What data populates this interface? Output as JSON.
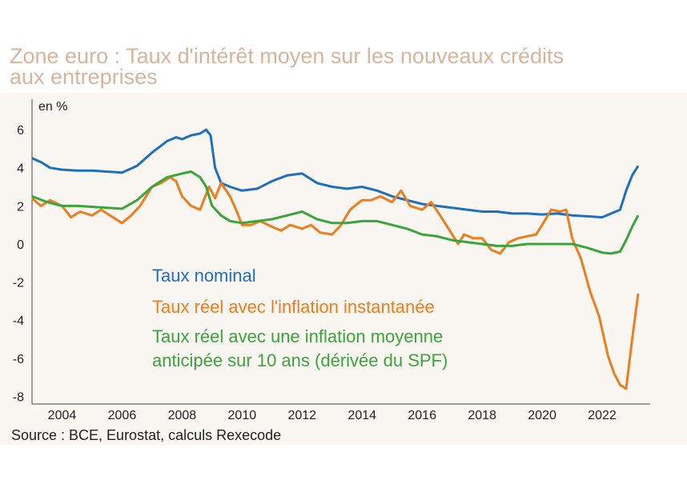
{
  "title_lines": [
    "Zone euro : Taux d'intérêt moyen sur les nouveaux crédits",
    "aux entreprises"
  ],
  "source": "Source :  BCE, Eurostat, calculs Rexecode",
  "colors": {
    "nominal": "#1f6fbf",
    "instant": "#ee7d1d",
    "anticipated": "#3aa53a",
    "title": "#d9b49c"
  },
  "chart_data": {
    "type": "line",
    "title": "Zone euro : Taux d'intérêt moyen sur les nouveaux crédits aux entreprises",
    "ylabel": "en %",
    "xlabel": "",
    "xlim": [
      2003.0,
      2023.6
    ],
    "ylim": [
      -8.4,
      7.6
    ],
    "x_ticks": [
      2004,
      2006,
      2008,
      2010,
      2012,
      2014,
      2016,
      2018,
      2020,
      2022
    ],
    "y_ticks": [
      6,
      4,
      2,
      0,
      -2,
      -4,
      -6,
      -8
    ],
    "grid": false,
    "legend_position": "center",
    "series": [
      {
        "name": "Taux nominal",
        "color": "#1f6fbf",
        "x": [
          2003.0,
          2003.3,
          2003.6,
          2004.0,
          2004.5,
          2005.0,
          2005.5,
          2006.0,
          2006.5,
          2007.0,
          2007.5,
          2007.8,
          2008.0,
          2008.3,
          2008.6,
          2008.8,
          2008.95,
          2009.1,
          2009.3,
          2009.6,
          2010.0,
          2010.5,
          2011.0,
          2011.5,
          2012.0,
          2012.5,
          2013.0,
          2013.5,
          2014.0,
          2014.5,
          2015.0,
          2015.5,
          2016.0,
          2016.5,
          2017.0,
          2017.5,
          2018.0,
          2018.5,
          2019.0,
          2019.5,
          2020.0,
          2020.5,
          2021.0,
          2021.5,
          2022.0,
          2022.3,
          2022.6,
          2022.8,
          2023.0,
          2023.2
        ],
        "values": [
          4.5,
          4.3,
          4.0,
          3.9,
          3.85,
          3.85,
          3.8,
          3.75,
          4.1,
          4.8,
          5.4,
          5.6,
          5.5,
          5.7,
          5.8,
          6.0,
          5.7,
          4.0,
          3.2,
          3.0,
          2.8,
          2.9,
          3.3,
          3.6,
          3.7,
          3.2,
          3.0,
          2.9,
          3.0,
          2.8,
          2.5,
          2.3,
          2.1,
          2.0,
          1.9,
          1.8,
          1.7,
          1.7,
          1.6,
          1.6,
          1.55,
          1.6,
          1.5,
          1.45,
          1.4,
          1.6,
          1.8,
          2.8,
          3.6,
          4.1
        ]
      },
      {
        "name": "Taux réel avec l'inflation instantanée",
        "color": "#ee7d1d",
        "x": [
          2003.0,
          2003.3,
          2003.6,
          2004.0,
          2004.3,
          2004.6,
          2005.0,
          2005.3,
          2005.6,
          2006.0,
          2006.3,
          2006.6,
          2007.0,
          2007.3,
          2007.6,
          2007.8,
          2008.0,
          2008.3,
          2008.6,
          2008.9,
          2009.1,
          2009.3,
          2009.6,
          2009.8,
          2010.0,
          2010.3,
          2010.6,
          2011.0,
          2011.3,
          2011.6,
          2012.0,
          2012.3,
          2012.6,
          2013.0,
          2013.3,
          2013.6,
          2014.0,
          2014.3,
          2014.6,
          2015.0,
          2015.3,
          2015.6,
          2016.0,
          2016.3,
          2016.6,
          2017.0,
          2017.2,
          2017.4,
          2017.7,
          2018.0,
          2018.3,
          2018.6,
          2018.9,
          2019.2,
          2019.5,
          2019.8,
          2020.0,
          2020.3,
          2020.6,
          2020.8,
          2021.0,
          2021.3,
          2021.6,
          2021.9,
          2022.2,
          2022.4,
          2022.6,
          2022.8,
          2023.0,
          2023.2
        ],
        "values": [
          2.4,
          2.0,
          2.3,
          2.0,
          1.4,
          1.7,
          1.5,
          1.8,
          1.5,
          1.1,
          1.5,
          2.0,
          3.0,
          3.2,
          3.5,
          3.3,
          2.5,
          2.0,
          1.8,
          3.0,
          2.4,
          3.2,
          2.5,
          1.8,
          1.0,
          1.0,
          1.2,
          0.9,
          0.7,
          1.0,
          0.8,
          1.0,
          0.6,
          0.5,
          1.0,
          1.8,
          2.3,
          2.3,
          2.5,
          2.2,
          2.8,
          2.0,
          1.8,
          2.2,
          1.5,
          0.5,
          0.0,
          0.5,
          0.3,
          0.3,
          -0.3,
          -0.5,
          0.1,
          0.3,
          0.4,
          0.5,
          1.0,
          1.8,
          1.7,
          1.8,
          0.3,
          -0.8,
          -2.5,
          -3.8,
          -5.9,
          -6.8,
          -7.4,
          -7.6,
          -5.0,
          -2.6
        ]
      },
      {
        "name": "Taux réel avec une inflation moyenne anticipée sur 10 ans (dérivée du SPF)",
        "color": "#3aa53a",
        "x": [
          2003.0,
          2003.5,
          2004.0,
          2004.5,
          2005.0,
          2005.5,
          2006.0,
          2006.5,
          2007.0,
          2007.5,
          2008.0,
          2008.3,
          2008.6,
          2008.8,
          2009.0,
          2009.3,
          2009.6,
          2010.0,
          2010.5,
          2011.0,
          2011.5,
          2012.0,
          2012.5,
          2013.0,
          2013.5,
          2014.0,
          2014.5,
          2015.0,
          2015.5,
          2016.0,
          2016.5,
          2017.0,
          2017.5,
          2018.0,
          2018.5,
          2019.0,
          2019.5,
          2020.0,
          2020.5,
          2021.0,
          2021.5,
          2022.0,
          2022.3,
          2022.6,
          2022.8,
          2023.0,
          2023.2
        ],
        "values": [
          2.5,
          2.2,
          2.0,
          2.0,
          1.95,
          1.9,
          1.85,
          2.3,
          3.0,
          3.5,
          3.7,
          3.8,
          3.5,
          3.0,
          2.0,
          1.5,
          1.2,
          1.1,
          1.2,
          1.3,
          1.5,
          1.7,
          1.3,
          1.1,
          1.1,
          1.2,
          1.2,
          1.0,
          0.8,
          0.5,
          0.4,
          0.2,
          0.1,
          0.0,
          -0.1,
          -0.1,
          0.0,
          0.0,
          0.0,
          0.0,
          -0.2,
          -0.45,
          -0.5,
          -0.4,
          0.2,
          0.9,
          1.5
        ]
      }
    ]
  }
}
